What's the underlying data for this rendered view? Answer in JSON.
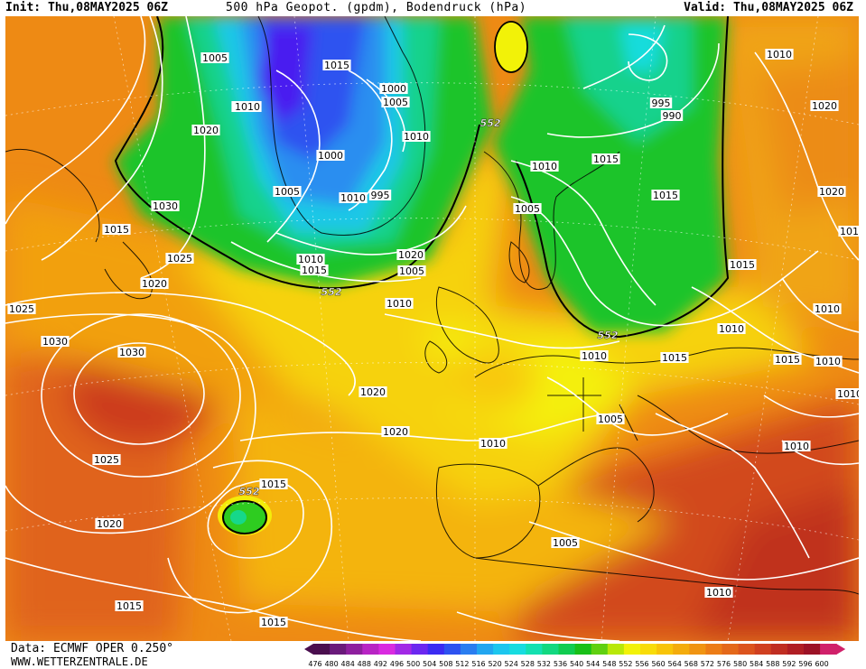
{
  "header": {
    "init": "Init: Thu,08MAY2025 06Z",
    "title": "500 hPa Geopot. (gpdm), Bodendruck (hPa)",
    "valid": "Valid: Thu,08MAY2025 06Z"
  },
  "footer": {
    "data_source": "Data: ECMWF OPER 0.250°",
    "website": "WWW.WETTERZENTRALE.DE"
  },
  "colorbar": {
    "ticks": [
      "476",
      "480",
      "484",
      "488",
      "492",
      "496",
      "500",
      "504",
      "508",
      "512",
      "516",
      "520",
      "524",
      "528",
      "532",
      "536",
      "540",
      "544",
      "548",
      "552",
      "556",
      "560",
      "564",
      "568",
      "572",
      "576",
      "580",
      "584",
      "588",
      "592",
      "596",
      "600"
    ],
    "colors": [
      "#4a0e4e",
      "#6a1a7a",
      "#8e1f9e",
      "#b824c4",
      "#d92ae0",
      "#a228e6",
      "#6b27f0",
      "#3b2bf2",
      "#2d52f0",
      "#2a7df0",
      "#22a6f0",
      "#1cc6ee",
      "#17dce0",
      "#14e0b0",
      "#12d880",
      "#10cc50",
      "#18c018",
      "#60d010",
      "#b8e808",
      "#f2f208",
      "#f8dc08",
      "#f8c408",
      "#f4ac0c",
      "#f09412",
      "#ec7c16",
      "#e4681a",
      "#dc541e",
      "#d04020",
      "#c02e22",
      "#b01e24",
      "#9c1226",
      "#d0206a"
    ]
  },
  "map": {
    "geopotential_label": "552",
    "isobar_labels": [
      "1005",
      "1010",
      "1020",
      "1030",
      "1015",
      "1025",
      "1020",
      "1025",
      "1030",
      "1030",
      "1025",
      "1020",
      "1015",
      "1015",
      "1020",
      "1020",
      "1015",
      "1010",
      "1005",
      "1005",
      "1010",
      "1000",
      "995",
      "990",
      "995",
      "1000",
      "1005",
      "1010",
      "995",
      "1000",
      "1010",
      "1005",
      "1010",
      "1015",
      "1020",
      "1015",
      "1010",
      "1005",
      "1010",
      "1005",
      "1010",
      "1015",
      "1015",
      "1015",
      "1010",
      "1015",
      "1015",
      "1010",
      "1010",
      "1010",
      "1010",
      "1010",
      "1020",
      "1020",
      "1015",
      "1010"
    ]
  }
}
